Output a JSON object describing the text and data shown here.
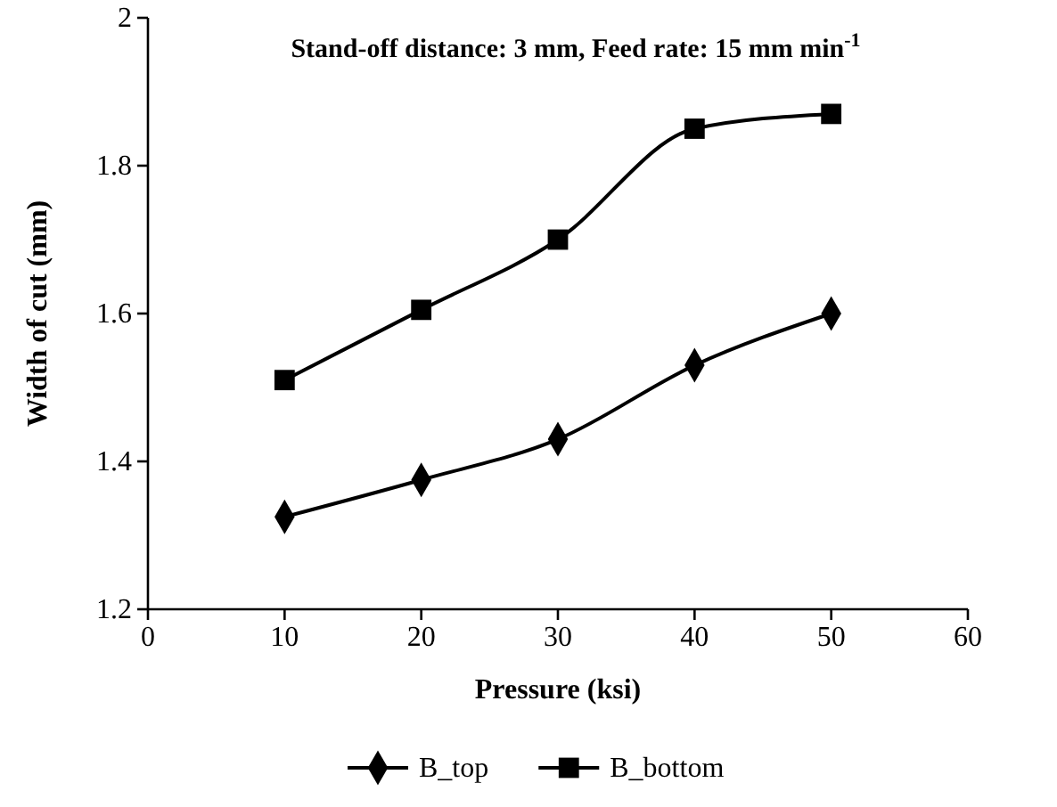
{
  "chart_data": {
    "type": "line",
    "title": "Stand-off distance: 3 mm, Feed rate: 15 mm min$^{-1}$",
    "xlabel": "Pressure (ksi)",
    "ylabel": "Width of cut (mm)",
    "x": [
      10,
      20,
      30,
      40,
      50
    ],
    "series": [
      {
        "name": "B_top",
        "color": "#000000",
        "marker": "diamond",
        "values": [
          1.325,
          1.375,
          1.43,
          1.53,
          1.6
        ]
      },
      {
        "name": "B_bottom",
        "color": "#000000",
        "marker": "square",
        "values": [
          1.51,
          1.605,
          1.7,
          1.85,
          1.87
        ]
      }
    ],
    "xlim": [
      0,
      60
    ],
    "xticks": [
      0,
      10,
      20,
      30,
      40,
      50,
      60
    ],
    "ylim": [
      1.2,
      2
    ],
    "yticks": [
      1.2,
      1.4,
      1.6,
      1.8,
      2
    ],
    "grid": false,
    "legend": "bottom",
    "line_style": "solid"
  }
}
